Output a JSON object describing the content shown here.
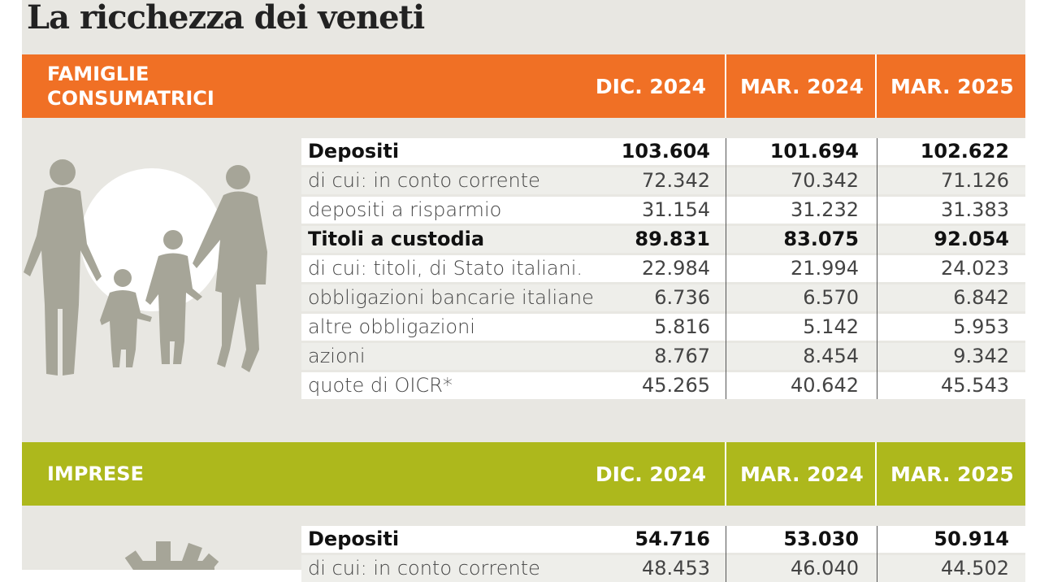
{
  "title": "La ricchezza dei veneti",
  "icons": {
    "family": "family-silhouette-icon",
    "business": "gear-icon"
  },
  "colors": {
    "families_header": "#f07025",
    "businesses_header": "#adb81c",
    "background": "#e8e7e2"
  },
  "families": {
    "category": "FAMIGLIE\nCONSUMATRICI",
    "columns": [
      "DIC. 2024",
      "MAR. 2024",
      "MAR. 2025"
    ],
    "rows": [
      {
        "label": "Depositi",
        "bold": true,
        "values": [
          "103.604",
          "101.694",
          "102.622"
        ]
      },
      {
        "label": "di cui: in conto corrente",
        "bold": false,
        "values": [
          "72.342",
          "70.342",
          "71.126"
        ]
      },
      {
        "label": "depositi a risparmio",
        "bold": false,
        "values": [
          "31.154",
          "31.232",
          "31.383"
        ]
      },
      {
        "label": "Titoli a custodia",
        "bold": true,
        "values": [
          "89.831",
          "83.075",
          "92.054"
        ]
      },
      {
        "label": "di cui: titoli, di Stato italiani.",
        "bold": false,
        "values": [
          "22.984",
          "21.994",
          "24.023"
        ]
      },
      {
        "label": "obbligazioni bancarie italiane",
        "bold": false,
        "values": [
          "6.736",
          "6.570",
          "6.842"
        ]
      },
      {
        "label": "altre obbligazioni",
        "bold": false,
        "values": [
          "5.816",
          "5.142",
          "5.953"
        ]
      },
      {
        "label": "azioni",
        "bold": false,
        "values": [
          "8.767",
          "8.454",
          "9.342"
        ]
      },
      {
        "label": "quote di OICR*",
        "bold": false,
        "values": [
          "45.265",
          "40.642",
          "45.543"
        ]
      }
    ]
  },
  "businesses": {
    "category": "IMPRESE",
    "columns": [
      "DIC. 2024",
      "MAR. 2024",
      "MAR. 2025"
    ],
    "rows": [
      {
        "label": "Depositi",
        "bold": true,
        "values": [
          "54.716",
          "53.030",
          "50.914"
        ]
      },
      {
        "label": "di cui: in conto corrente",
        "bold": false,
        "values": [
          "48.453",
          "46.040",
          "44.502"
        ]
      }
    ]
  }
}
